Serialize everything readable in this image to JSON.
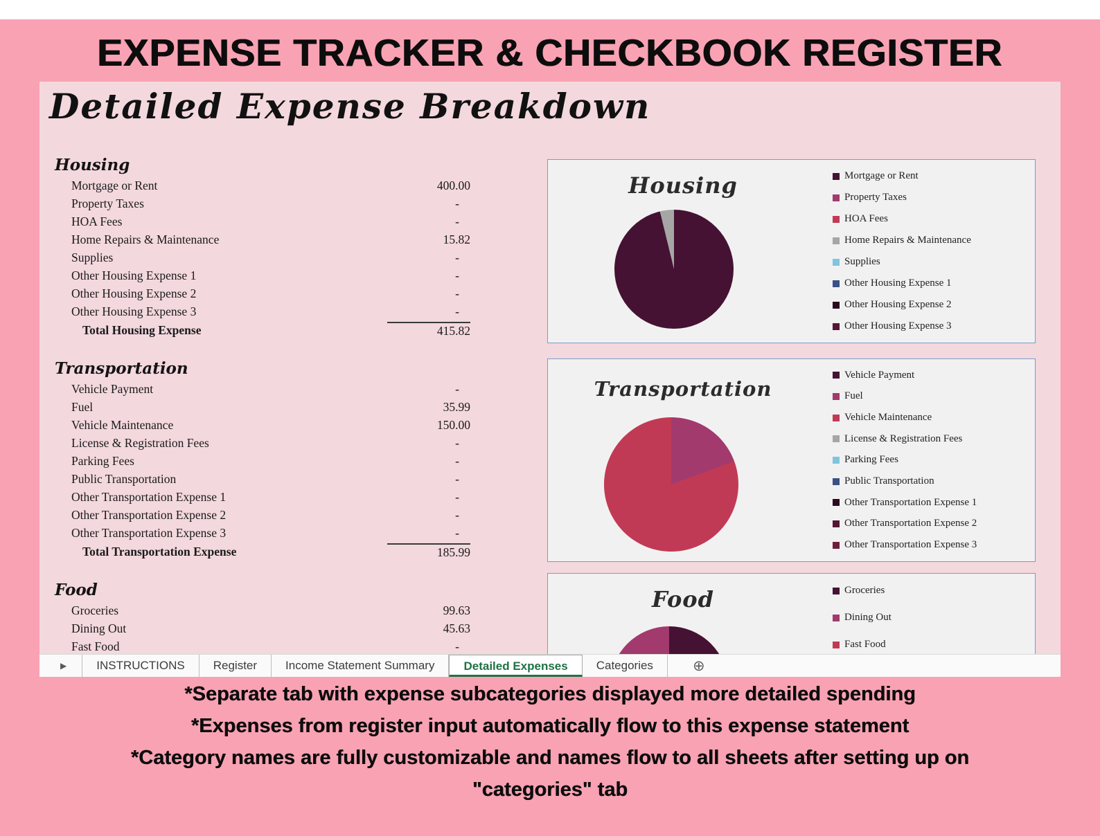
{
  "header": {
    "title": "EXPENSE TRACKER & CHECKBOOK REGISTER"
  },
  "sheet": {
    "heading": "Detailed Expense Breakdown",
    "sections": [
      {
        "name": "Housing",
        "rows": [
          {
            "label": "Mortgage or Rent",
            "value": "400.00"
          },
          {
            "label": "Property Taxes",
            "value": "-"
          },
          {
            "label": "HOA Fees",
            "value": "-"
          },
          {
            "label": "Home Repairs & Maintenance",
            "value": "15.82"
          },
          {
            "label": "Supplies",
            "value": "-"
          },
          {
            "label": "Other Housing Expense 1",
            "value": "-"
          },
          {
            "label": "Other Housing Expense 2",
            "value": "-"
          },
          {
            "label": "Other Housing Expense 3",
            "value": "-"
          }
        ],
        "total": {
          "label": "Total Housing Expense",
          "value": "415.82"
        }
      },
      {
        "name": "Transportation",
        "rows": [
          {
            "label": "Vehicle Payment",
            "value": "-"
          },
          {
            "label": "Fuel",
            "value": "35.99"
          },
          {
            "label": "Vehicle Maintenance",
            "value": "150.00"
          },
          {
            "label": "License & Registration Fees",
            "value": "-"
          },
          {
            "label": "Parking Fees",
            "value": "-"
          },
          {
            "label": "Public Transportation",
            "value": "-"
          },
          {
            "label": "Other Transportation Expense 1",
            "value": "-"
          },
          {
            "label": "Other Transportation Expense 2",
            "value": "-"
          },
          {
            "label": "Other Transportation Expense 3",
            "value": "-"
          }
        ],
        "total": {
          "label": "Total Transportation Expense",
          "value": "185.99"
        }
      },
      {
        "name": "Food",
        "rows": [
          {
            "label": "Groceries",
            "value": "99.63"
          },
          {
            "label": "Dining Out",
            "value": "45.63"
          },
          {
            "label": "Fast Food",
            "value": "-"
          }
        ],
        "total": null
      }
    ]
  },
  "chart_data": [
    {
      "type": "pie",
      "title": "Housing",
      "legend_position": "right",
      "slices": [
        {
          "label": "Mortgage or Rent",
          "value": 400.0,
          "color": "#451233"
        },
        {
          "label": "Property Taxes",
          "value": 0,
          "color": "#a23a6e"
        },
        {
          "label": "HOA Fees",
          "value": 0,
          "color": "#c13a55"
        },
        {
          "label": "Home Repairs & Maintenance",
          "value": 15.82,
          "color": "#a6a6a6"
        },
        {
          "label": "Supplies",
          "value": 0,
          "color": "#7fc4e1"
        },
        {
          "label": "Other Housing Expense 1",
          "value": 0,
          "color": "#3a5086"
        },
        {
          "label": "Other Housing Expense 2",
          "value": 0,
          "color": "#2c0a20"
        },
        {
          "label": "Other Housing Expense 3",
          "value": 0,
          "color": "#561634"
        }
      ]
    },
    {
      "type": "pie",
      "title": "Transportation",
      "legend_position": "right",
      "slices": [
        {
          "label": "Vehicle Payment",
          "value": 0,
          "color": "#451233"
        },
        {
          "label": "Fuel",
          "value": 35.99,
          "color": "#a23a6e"
        },
        {
          "label": "Vehicle Maintenance",
          "value": 150.0,
          "color": "#c13a55"
        },
        {
          "label": "License & Registration Fees",
          "value": 0,
          "color": "#a6a6a6"
        },
        {
          "label": "Parking Fees",
          "value": 0,
          "color": "#7fc4e1"
        },
        {
          "label": "Public Transportation",
          "value": 0,
          "color": "#3a5086"
        },
        {
          "label": "Other Transportation Expense 1",
          "value": 0,
          "color": "#2c0a20"
        },
        {
          "label": "Other Transportation Expense 2",
          "value": 0,
          "color": "#561634"
        },
        {
          "label": "Other Transportation Expense 3",
          "value": 0,
          "color": "#6e1d3c"
        }
      ]
    },
    {
      "type": "pie",
      "title": "Food",
      "legend_position": "right",
      "slices": [
        {
          "label": "Groceries",
          "value": 99.63,
          "color": "#451233"
        },
        {
          "label": "Dining Out",
          "value": 45.63,
          "color": "#a23a6e"
        },
        {
          "label": "Fast Food",
          "value": 0,
          "color": "#c13a55"
        }
      ]
    }
  ],
  "tabbar": {
    "nav_icon": "▶",
    "add_icon": "⊕",
    "tabs": [
      {
        "label": "INSTRUCTIONS",
        "active": false
      },
      {
        "label": "Register",
        "active": false
      },
      {
        "label": "Income Statement Summary",
        "active": false
      },
      {
        "label": "Detailed Expenses",
        "active": true
      },
      {
        "label": "Categories",
        "active": false
      }
    ]
  },
  "footnotes": [
    "*Separate tab with expense subcategories displayed more detailed spending",
    "*Expenses from register input automatically flow to this expense statement",
    "*Category names are fully customizable and names flow to all sheets after setting up on",
    "\"categories\" tab"
  ],
  "colors": {
    "frame_pink": "#f9a2b3",
    "sheet_pink": "#f3d8de",
    "active_tab_green": "#1f7145",
    "panel_border_blue": "#7a9cc6"
  }
}
